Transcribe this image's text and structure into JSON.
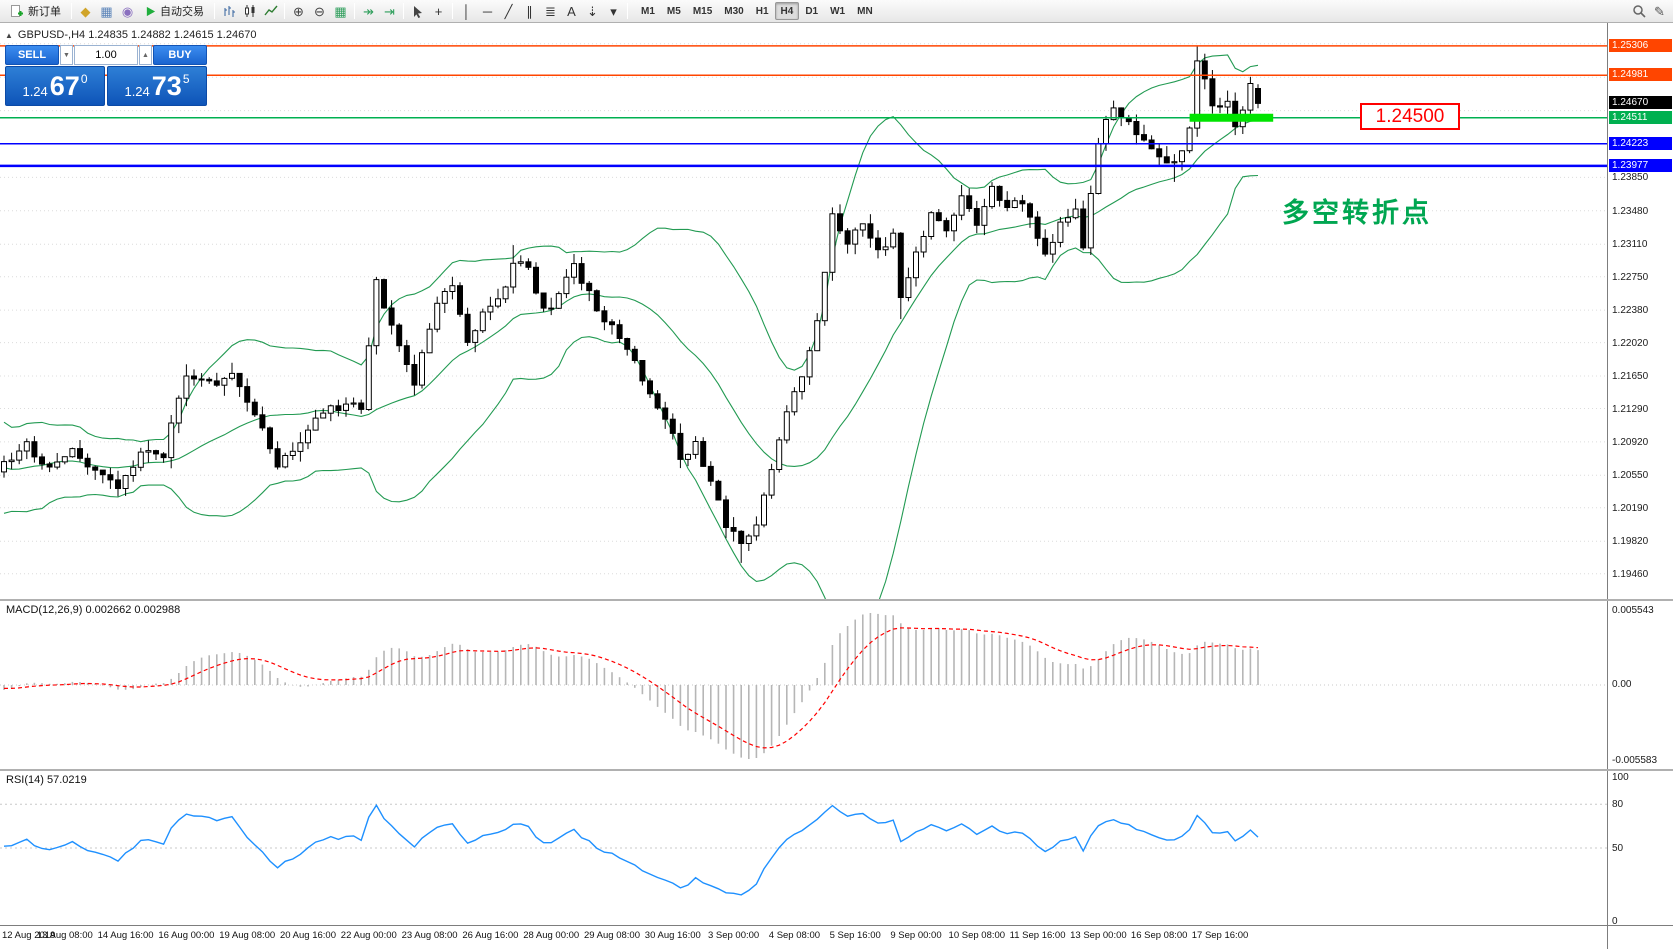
{
  "toolbar": {
    "items": [
      {
        "t": "btn",
        "name": "new-order",
        "icon": "doc-plus",
        "label": "新订单"
      },
      {
        "t": "sep"
      },
      {
        "t": "icon",
        "name": "market-watch",
        "glyph": "◆",
        "color": "#d0a429"
      },
      {
        "t": "icon",
        "name": "data-window",
        "glyph": "▦",
        "color": "#5b84b9"
      },
      {
        "t": "icon",
        "name": "navigator",
        "glyph": "◉",
        "color": "#8a6fbf"
      },
      {
        "t": "btn",
        "name": "autotrading",
        "icon": "play",
        "label": "自动交易"
      },
      {
        "t": "sep"
      },
      {
        "t": "svg",
        "name": "bar-chart",
        "svg": "bars"
      },
      {
        "t": "svg",
        "name": "candlestick-chart",
        "svg": "candles"
      },
      {
        "t": "svg",
        "name": "line-chart",
        "svg": "linec"
      },
      {
        "t": "sep"
      },
      {
        "t": "icon",
        "name": "zoom-in",
        "glyph": "⊕",
        "color": "#444"
      },
      {
        "t": "icon",
        "name": "zoom-out",
        "glyph": "⊖",
        "color": "#444"
      },
      {
        "t": "icon",
        "name": "tile-windows",
        "glyph": "▦",
        "color": "#2e9e5b"
      },
      {
        "t": "sep"
      },
      {
        "t": "icon",
        "name": "auto-scroll",
        "glyph": "↠",
        "color": "#2e9e5b"
      },
      {
        "t": "icon",
        "name": "chart-shift",
        "glyph": "⇥",
        "color": "#2e9e5b"
      },
      {
        "t": "sep"
      },
      {
        "t": "svg",
        "name": "cursor",
        "svg": "pointer"
      },
      {
        "t": "icon",
        "name": "crosshair",
        "glyph": "+",
        "color": "#333"
      },
      {
        "t": "sep"
      },
      {
        "t": "icon",
        "name": "vertical-line",
        "glyph": "│",
        "color": "#333"
      },
      {
        "t": "icon",
        "name": "horizontal-line",
        "glyph": "─",
        "color": "#333"
      },
      {
        "t": "icon",
        "name": "trendline",
        "glyph": "╱",
        "color": "#333"
      },
      {
        "t": "icon",
        "name": "equidistant-channel",
        "glyph": "∥",
        "color": "#333"
      },
      {
        "t": "icon",
        "name": "fibonacci",
        "glyph": "≣",
        "color": "#333"
      },
      {
        "t": "icon",
        "name": "text",
        "glyph": "A",
        "color": "#333"
      },
      {
        "t": "icon",
        "name": "arrows",
        "glyph": "⇣",
        "color": "#333"
      },
      {
        "t": "icon",
        "name": "objects-dropdown",
        "glyph": "▾",
        "color": "#333"
      },
      {
        "t": "sep"
      },
      {
        "t": "tf"
      },
      {
        "t": "spacer"
      },
      {
        "t": "svg",
        "name": "search",
        "svg": "search"
      },
      {
        "t": "icon",
        "name": "compose",
        "glyph": "✎",
        "color": "#555"
      }
    ],
    "timeframes": [
      {
        "label": "M1",
        "active": false
      },
      {
        "label": "M5",
        "active": false
      },
      {
        "label": "M15",
        "active": false
      },
      {
        "label": "M30",
        "active": false
      },
      {
        "label": "H1",
        "active": false
      },
      {
        "label": "H4",
        "active": true
      },
      {
        "label": "D1",
        "active": false
      },
      {
        "label": "W1",
        "active": false
      },
      {
        "label": "MN",
        "active": false
      }
    ]
  },
  "chart": {
    "collapse_glyph": "▲",
    "symbol_info": "GBPUSD-,H4  1.24835 1.24882 1.24615 1.24670"
  },
  "trade_widget": {
    "sell_label": "SELL",
    "buy_label": "BUY",
    "volume": "1.00",
    "spin_down_glyph": "▼",
    "spin_up_glyph": "▲",
    "sell_price": {
      "prefix": "1.24",
      "big": "67",
      "sup": "0"
    },
    "buy_price": {
      "prefix": "1.24",
      "big": "73",
      "sup": "5"
    }
  },
  "annotations": {
    "price_box": "1.24500",
    "turning_point": "多空转折点"
  },
  "price_scale": {
    "tags": [
      {
        "label": "1.25306",
        "price": 1.25306,
        "bg": "#ff4500"
      },
      {
        "label": "1.24981",
        "price": 1.24981,
        "bg": "#ff4500"
      },
      {
        "label": "1.24670",
        "price": 1.2467,
        "bg": "#000000"
      },
      {
        "label": "1.24511",
        "price": 1.24511,
        "bg": "#00b050"
      },
      {
        "label": "1.24223",
        "price": 1.24223,
        "bg": "#0000ff"
      },
      {
        "label": "1.23977",
        "price": 1.23977,
        "bg": "#0000ff"
      }
    ],
    "labels": [
      {
        "label": "1.23850",
        "price": 1.2385
      },
      {
        "label": "1.23480",
        "price": 1.2348
      },
      {
        "label": "1.23110",
        "price": 1.2311
      },
      {
        "label": "1.22750",
        "price": 1.2275
      },
      {
        "label": "1.22380",
        "price": 1.2238
      },
      {
        "label": "1.22020",
        "price": 1.2202
      },
      {
        "label": "1.21650",
        "price": 1.2165
      },
      {
        "label": "1.21290",
        "price": 1.2129
      },
      {
        "label": "1.20920",
        "price": 1.2092
      },
      {
        "label": "1.20550",
        "price": 1.2055
      },
      {
        "label": "1.20190",
        "price": 1.2019
      },
      {
        "label": "1.19820",
        "price": 1.1982
      },
      {
        "label": "1.19460",
        "price": 1.1946
      }
    ]
  },
  "macd": {
    "header": "MACD(12,26,9) 0.002662 0.002988",
    "scale_top": "0.005543",
    "scale_mid": "0.00",
    "scale_bottom": "-0.005583"
  },
  "rsi": {
    "header": "RSI(14) 57.0219",
    "levels": [
      80,
      50
    ],
    "scale": [
      {
        "v": 100,
        "label": "100"
      },
      {
        "v": 80,
        "label": "80"
      },
      {
        "v": 50,
        "label": "50"
      },
      {
        "v": 0,
        "label": "0"
      }
    ]
  },
  "time_axis": [
    "12 Aug 2019",
    "13 Aug 08:00",
    "14 Aug 16:00",
    "16 Aug 00:00",
    "19 Aug 08:00",
    "20 Aug 16:00",
    "22 Aug 00:00",
    "23 Aug 08:00",
    "26 Aug 16:00",
    "28 Aug 00:00",
    "29 Aug 08:00",
    "30 Aug 16:00",
    "3 Sep 00:00",
    "4 Sep 08:00",
    "5 Sep 16:00",
    "9 Sep 00:00",
    "10 Sep 08:00",
    "11 Sep 16:00",
    "13 Sep 00:00",
    "16 Sep 08:00",
    "17 Sep 16:00"
  ],
  "chart_data": {
    "type": "candlestick",
    "symbol": "GBPUSD-",
    "timeframe": "H4",
    "ohlc_last": {
      "open": 1.24835,
      "high": 1.24882,
      "low": 1.24615,
      "close": 1.2467
    },
    "y_range": [
      1.1918,
      1.2556
    ],
    "bars": 166,
    "bars_per_label": 8,
    "waypoints": [
      [
        0,
        1.207
      ],
      [
        3,
        1.2088
      ],
      [
        6,
        1.2062
      ],
      [
        9,
        1.2085
      ],
      [
        12,
        1.206
      ],
      [
        15,
        1.2042
      ],
      [
        18,
        1.2078
      ],
      [
        21,
        1.208
      ],
      [
        24,
        1.2168
      ],
      [
        27,
        1.2155
      ],
      [
        30,
        1.2165
      ],
      [
        33,
        1.212
      ],
      [
        36,
        1.2068
      ],
      [
        39,
        1.2092
      ],
      [
        42,
        1.2125
      ],
      [
        45,
        1.2135
      ],
      [
        47,
        1.2128
      ],
      [
        49,
        1.2268
      ],
      [
        52,
        1.2195
      ],
      [
        54,
        1.2158
      ],
      [
        57,
        1.225
      ],
      [
        59,
        1.2262
      ],
      [
        61,
        1.22
      ],
      [
        63,
        1.2238
      ],
      [
        66,
        1.2262
      ],
      [
        67,
        1.2295
      ],
      [
        69,
        1.228
      ],
      [
        71,
        1.2235
      ],
      [
        73,
        1.2255
      ],
      [
        75,
        1.2285
      ],
      [
        78,
        1.224
      ],
      [
        81,
        1.2205
      ],
      [
        84,
        1.2165
      ],
      [
        87,
        1.212
      ],
      [
        89,
        1.2072
      ],
      [
        91,
        1.2088
      ],
      [
        93,
        1.2052
      ],
      [
        95,
        1.2002
      ],
      [
        97,
        1.1978
      ],
      [
        99,
        1.2005
      ],
      [
        101,
        1.206
      ],
      [
        103,
        1.2125
      ],
      [
        105,
        1.2165
      ],
      [
        107,
        1.223
      ],
      [
        109,
        1.234
      ],
      [
        111,
        1.2315
      ],
      [
        113,
        1.233
      ],
      [
        115,
        1.23
      ],
      [
        117,
        1.2325
      ],
      [
        118,
        1.2255
      ],
      [
        120,
        1.23
      ],
      [
        122,
        1.2345
      ],
      [
        124,
        1.233
      ],
      [
        126,
        1.236
      ],
      [
        128,
        1.2335
      ],
      [
        130,
        1.2375
      ],
      [
        132,
        1.235
      ],
      [
        134,
        1.236
      ],
      [
        136,
        1.2318
      ],
      [
        137,
        1.2295
      ],
      [
        139,
        1.233
      ],
      [
        141,
        1.235
      ],
      [
        142,
        1.231
      ],
      [
        144,
        1.2425
      ],
      [
        146,
        1.2465
      ],
      [
        148,
        1.2445
      ],
      [
        150,
        1.2425
      ],
      [
        152,
        1.2405
      ],
      [
        154,
        1.2398
      ],
      [
        156,
        1.244
      ],
      [
        157,
        1.2515
      ],
      [
        158,
        1.249
      ],
      [
        159,
        1.2465
      ],
      [
        160,
        1.2458
      ],
      [
        161,
        1.247
      ],
      [
        162,
        1.2445
      ],
      [
        163,
        1.2455
      ],
      [
        164,
        1.2492
      ],
      [
        165,
        1.2467
      ]
    ],
    "spikes": [
      {
        "bar": 24,
        "high": 1.2178
      },
      {
        "bar": 49,
        "high": 1.2272
      },
      {
        "bar": 67,
        "high": 1.231
      },
      {
        "bar": 97,
        "low": 1.1958
      },
      {
        "bar": 118,
        "low": 1.2228
      },
      {
        "bar": 154,
        "low": 1.238
      },
      {
        "bar": 157,
        "high": 1.253
      }
    ],
    "levels": [
      {
        "price": 1.25306,
        "color": "#ff4500",
        "width": 1.5
      },
      {
        "price": 1.24981,
        "color": "#ff4500",
        "width": 1.5
      },
      {
        "price": 1.24511,
        "color": "#00b050",
        "width": 1.5,
        "segment": {
          "from": 156,
          "to": 167,
          "color": "#00e400",
          "width": 8
        }
      },
      {
        "price": 1.24223,
        "color": "#0000ff",
        "width": 1.5
      },
      {
        "price": 1.23977,
        "color": "#0000ff",
        "width": 2.5
      }
    ],
    "extra_grid": [
      1.2422,
      1.2459,
      1.2496,
      1.2533
    ],
    "bollinger": {
      "period": 20,
      "deviation": 2,
      "color": "#229a52"
    },
    "macd": {
      "fast": 12,
      "slow": 26,
      "signal": 9,
      "histogram_color": "#b6b6b6",
      "signal_color": "#ff0000"
    },
    "rsi": {
      "period": 14,
      "color": "#1e90ff"
    }
  }
}
